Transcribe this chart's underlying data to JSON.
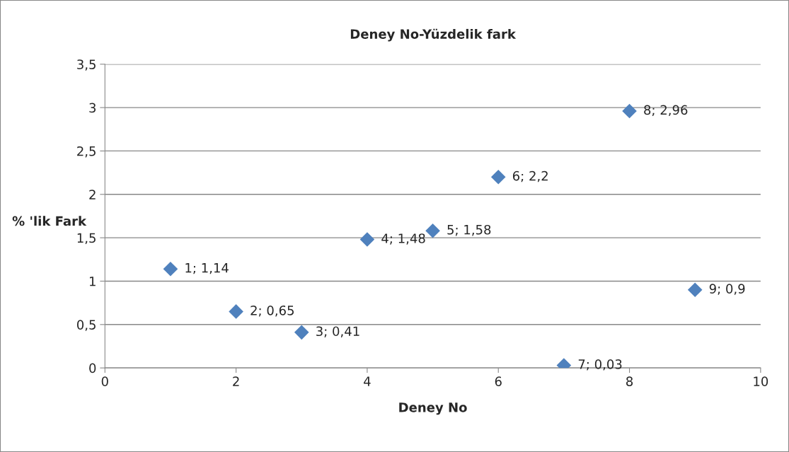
{
  "chart_data": {
    "type": "scatter",
    "title": "Deney No-Yüzdelik fark",
    "xlabel": "Deney No",
    "ylabel": "% 'lik Fark",
    "x": [
      1,
      2,
      3,
      4,
      5,
      6,
      7,
      8,
      9
    ],
    "series": [
      {
        "color": "#4f81bd",
        "values": [
          1.14,
          0.65,
          0.41,
          1.48,
          1.58,
          2.2,
          0.03,
          2.96,
          0.9
        ]
      }
    ],
    "value_labels": [
      "1; 1,14",
      "2; 0,65",
      "3; 0,41",
      "4; 1,48",
      "5; 1,58",
      "6; 2,2",
      "7; 0,03",
      "8; 2,96",
      "9; 0,9"
    ],
    "xlim": [
      0,
      10
    ],
    "xticks": [
      0,
      2,
      4,
      6,
      8,
      10
    ],
    "ylim": [
      0,
      3.5
    ],
    "yticks": [
      0,
      {
        "value": 0.5,
        "label": "0,5"
      },
      1,
      {
        "value": 1.5,
        "label": "1,5"
      },
      2,
      {
        "value": 2.5,
        "label": "2,5"
      },
      3,
      {
        "value": 3.5,
        "label": "3,5"
      }
    ],
    "grid": "y",
    "marker": "diamond"
  }
}
